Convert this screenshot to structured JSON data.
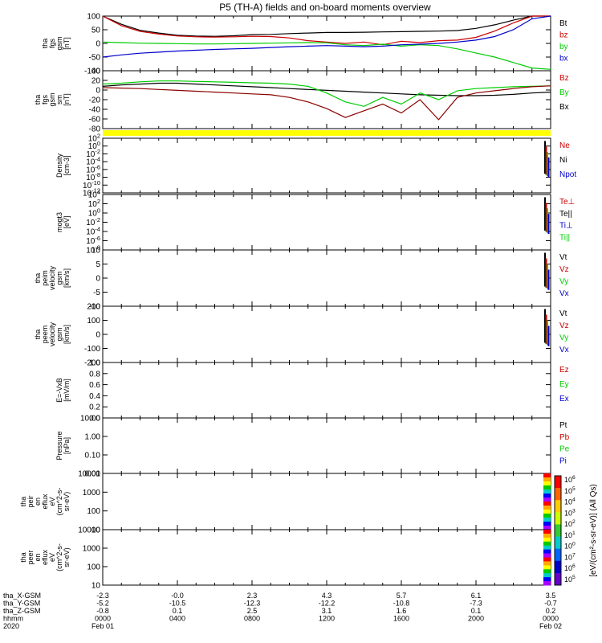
{
  "title": "P5 (TH-A) fields and on-board moments overview",
  "chart_data": {
    "type": "line",
    "title": "P5 (TH-A) fields and on-board moments overview",
    "panels": [
      {
        "id": "fgs-bxyzt",
        "ylabel": [
          "tha",
          "fgs",
          "gsm",
          "[nT]"
        ],
        "ylim": [
          -100,
          100
        ],
        "log": false,
        "yticks": [
          "100",
          "50",
          "0",
          "-50",
          "-100"
        ],
        "legend": [
          {
            "label": "Bt",
            "color": "#000000"
          },
          {
            "label": "bz",
            "color": "#cc0000"
          },
          {
            "label": "by",
            "color": "#00cc00"
          },
          {
            "label": "bx",
            "color": "#0000cc"
          }
        ],
        "series": [
          {
            "name": "bt",
            "color": "#000000",
            "x": [
              0,
              1,
              2,
              3,
              4,
              5,
              6,
              7,
              8,
              9,
              10,
              11,
              12,
              13,
              14,
              15,
              16,
              17,
              18,
              19,
              20,
              21,
              22,
              23,
              24
            ],
            "y": [
              100,
              70,
              48,
              38,
              30,
              27,
              26,
              28,
              32,
              33,
              36,
              38,
              40,
              40,
              41,
              42,
              43,
              44,
              45,
              47,
              55,
              68,
              85,
              100,
              100
            ]
          },
          {
            "name": "bz",
            "color": "#cc0000",
            "x": [
              0,
              1,
              2,
              3,
              4,
              5,
              6,
              7,
              8,
              9,
              10,
              11,
              12,
              13,
              14,
              15,
              16,
              17,
              18,
              19,
              20,
              21,
              22,
              23,
              24
            ],
            "y": [
              100,
              65,
              44,
              34,
              27,
              24,
              23,
              24,
              26,
              25,
              20,
              10,
              5,
              0,
              5,
              -5,
              8,
              3,
              10,
              12,
              22,
              45,
              75,
              100,
              100
            ]
          },
          {
            "name": "by",
            "color": "#00cc00",
            "x": [
              0,
              1,
              2,
              3,
              4,
              5,
              6,
              7,
              8,
              9,
              10,
              11,
              12,
              13,
              14,
              15,
              16,
              17,
              18,
              19,
              20,
              21,
              22,
              23,
              24
            ],
            "y": [
              5,
              3,
              1,
              0,
              -1,
              -2,
              -2,
              -1,
              0,
              1,
              2,
              3,
              2,
              -5,
              -8,
              -3,
              -10,
              -5,
              -8,
              -20,
              -35,
              -50,
              -70,
              -90,
              -95
            ]
          },
          {
            "name": "bx",
            "color": "#0000cc",
            "x": [
              0,
              1,
              2,
              3,
              4,
              5,
              6,
              7,
              8,
              9,
              10,
              11,
              12,
              13,
              14,
              15,
              16,
              17,
              18,
              19,
              20,
              21,
              22,
              23,
              24
            ],
            "y": [
              -50,
              -42,
              -36,
              -32,
              -28,
              -25,
              -22,
              -20,
              -18,
              -15,
              -12,
              -10,
              -8,
              -10,
              -12,
              -10,
              -5,
              -3,
              0,
              5,
              12,
              25,
              50,
              90,
              100
            ]
          }
        ]
      },
      {
        "id": "fgs-sm",
        "ylabel": [
          "tha",
          "fgs",
          "gsm",
          "sm",
          "[nT]"
        ],
        "ylim": [
          -90,
          40
        ],
        "log": false,
        "yticks": [
          "40",
          "20",
          "0",
          "-20",
          "-40",
          "-60",
          "-80"
        ],
        "legend": [
          {
            "label": "Bz",
            "color": "#cc0000"
          },
          {
            "label": "By",
            "color": "#00cc00"
          },
          {
            "label": "Bx",
            "color": "#000000"
          }
        ],
        "series": [
          {
            "name": "Bx",
            "color": "#000000",
            "x": [
              0,
              1,
              2,
              3,
              4,
              5,
              6,
              7,
              8,
              9,
              10,
              11,
              12,
              13,
              14,
              15,
              16,
              17,
              18,
              19,
              20,
              21,
              22,
              23,
              24
            ],
            "y": [
              5,
              8,
              10,
              12,
              12,
              10,
              8,
              6,
              4,
              2,
              0,
              -2,
              -4,
              -6,
              -8,
              -10,
              -12,
              -14,
              -15,
              -16,
              -16,
              -15,
              -13,
              -10,
              -8
            ]
          },
          {
            "name": "By",
            "color": "#00cc00",
            "x": [
              0,
              1,
              2,
              3,
              4,
              5,
              6,
              7,
              8,
              9,
              10,
              11,
              12,
              13,
              14,
              15,
              16,
              17,
              18,
              19,
              20,
              21,
              22,
              23,
              24
            ],
            "y": [
              10,
              12,
              15,
              17,
              17,
              16,
              15,
              14,
              13,
              12,
              10,
              5,
              -10,
              -30,
              -40,
              -20,
              -35,
              -10,
              -25,
              -5,
              0,
              2,
              4,
              5,
              6
            ]
          },
          {
            "name": "Bz",
            "color": "#8b0000",
            "x": [
              0,
              1,
              2,
              3,
              4,
              5,
              6,
              7,
              8,
              9,
              10,
              11,
              12,
              13,
              14,
              15,
              16,
              17,
              18,
              19,
              20,
              21,
              22,
              23,
              24
            ],
            "y": [
              2,
              1,
              0,
              -2,
              -4,
              -6,
              -8,
              -10,
              -12,
              -14,
              -20,
              -30,
              -45,
              -65,
              -50,
              -35,
              -55,
              -25,
              -70,
              -20,
              -10,
              -5,
              0,
              4,
              6
            ]
          }
        ]
      },
      {
        "id": "density",
        "ylabel": [
          "Density",
          "[cm-3]"
        ],
        "ylim": [
          -12,
          2
        ],
        "log": true,
        "yticks": [
          "10^2",
          "10^0",
          "10^-2",
          "10^-4",
          "10^-6",
          "10^-8",
          "10^-10",
          "10^-12"
        ],
        "legend": [
          {
            "label": "Ne",
            "color": "#cc0000"
          },
          {
            "label": "Ni",
            "color": "#000000"
          },
          {
            "label": "Npot",
            "color": "#0000cc"
          }
        ],
        "series": []
      },
      {
        "id": "temp",
        "ylabel": [
          "mogt3",
          "[eV]"
        ],
        "ylim": [
          -8,
          4
        ],
        "log": true,
        "yticks": [
          "10^4",
          "10^2",
          "10^0",
          "10^-2",
          "10^-4",
          "10^-6",
          "10^-8"
        ],
        "legend": [
          {
            "label": "Te⊥",
            "color": "#cc0000"
          },
          {
            "label": "Te||",
            "color": "#000000"
          },
          {
            "label": "Ti⊥",
            "color": "#0000cc"
          },
          {
            "label": "Ti||",
            "color": "#00cc00"
          }
        ],
        "series": []
      },
      {
        "id": "peim-vel",
        "ylabel": [
          "tha",
          "peim",
          "velocity",
          "gsm",
          "[km/s]"
        ],
        "ylim": [
          -10,
          10
        ],
        "log": false,
        "yticks": [
          "10",
          "5",
          "0",
          "-5",
          "-10"
        ],
        "legend": [
          {
            "label": "Vt",
            "color": "#000000"
          },
          {
            "label": "Vz",
            "color": "#cc0000"
          },
          {
            "label": "Vy",
            "color": "#00cc00"
          },
          {
            "label": "Vx",
            "color": "#0000cc"
          }
        ],
        "series": []
      },
      {
        "id": "peem-vel",
        "ylabel": [
          "tha",
          "peem",
          "velocity",
          "gsm",
          "[km/s]"
        ],
        "ylim": [
          -200,
          200
        ],
        "log": false,
        "yticks": [
          "200",
          "100",
          "0",
          "-100",
          "-200"
        ],
        "legend": [
          {
            "label": "Vt",
            "color": "#000000"
          },
          {
            "label": "Vz",
            "color": "#cc0000"
          },
          {
            "label": "Vy",
            "color": "#00cc00"
          },
          {
            "label": "Vx",
            "color": "#0000cc"
          }
        ],
        "series": []
      },
      {
        "id": "efield",
        "ylabel": [
          "E=-VxB",
          "[mV/m]"
        ],
        "ylim": [
          0,
          1
        ],
        "log": false,
        "yticks": [
          "1.0",
          "0.8",
          "0.6",
          "0.4",
          "0.2",
          "0.0"
        ],
        "legend": [
          {
            "label": "Ez",
            "color": "#cc0000"
          },
          {
            "label": "Ey",
            "color": "#00cc00"
          },
          {
            "label": "Ex",
            "color": "#0000cc"
          }
        ],
        "series": []
      },
      {
        "id": "pressure",
        "ylabel": [
          "Pressure",
          "[nPa]"
        ],
        "ylim": [
          -2,
          1.3
        ],
        "log": true,
        "yticks": [
          "10.00",
          "1.00",
          "0.10",
          "0.01"
        ],
        "legend": [
          {
            "label": "Pt",
            "color": "#000000"
          },
          {
            "label": "Pb",
            "color": "#cc0000"
          },
          {
            "label": "Pe",
            "color": "#00cc00"
          },
          {
            "label": "Pi",
            "color": "#0000cc"
          }
        ],
        "series": []
      },
      {
        "id": "peir",
        "ylabel": [
          "tha",
          "peir",
          "en",
          "eflux",
          "eV",
          "(cm^2-s-",
          "sr-eV)"
        ],
        "ylim": [
          0.78,
          4.3
        ],
        "log": true,
        "yticks": [
          "10000",
          "1000",
          "100",
          "10"
        ],
        "legend": [],
        "series": []
      },
      {
        "id": "peer",
        "ylabel": [
          "tha",
          "peer",
          "en",
          "eflux",
          "eV",
          "(cm^2-s-",
          "sr-eV)"
        ],
        "ylim": [
          0.9,
          4.3
        ],
        "log": true,
        "yticks": [
          "10000",
          "1000",
          "100",
          "10"
        ],
        "legend": [],
        "series": []
      }
    ],
    "colorbar_ticks": [
      "10^6",
      "10^5",
      "10^4",
      "10^3",
      "10^2",
      "10^1",
      "10^0",
      "10^7",
      "10^6",
      "10^5"
    ],
    "colorbar_label": "[eV/(cm²-s-sr-eV)] (All Qs)",
    "xaxis": {
      "rows": [
        {
          "label": "tha_X-GSM",
          "values": [
            "-2.3",
            "-0.0",
            "2.3",
            "4.3",
            "5.7",
            "6.1",
            "3.5"
          ]
        },
        {
          "label": "tha_Y-GSM",
          "values": [
            "-5.2",
            "-10.5",
            "-12.3",
            "-12.2",
            "-10.8",
            "-7.3",
            "-0.7"
          ]
        },
        {
          "label": "tha_Z-GSM",
          "values": [
            "-0.8",
            "0.1",
            "2.5",
            "3.1",
            "1.6",
            "0.1",
            "0.2"
          ]
        },
        {
          "label": "hhmm",
          "values": [
            "0000",
            "0400",
            "0800",
            "1200",
            "1600",
            "2000",
            "0000"
          ]
        },
        {
          "label": "2020",
          "values": [
            "Feb 01",
            "",
            "",
            "",
            "",
            "",
            "Feb 02"
          ]
        }
      ]
    }
  }
}
